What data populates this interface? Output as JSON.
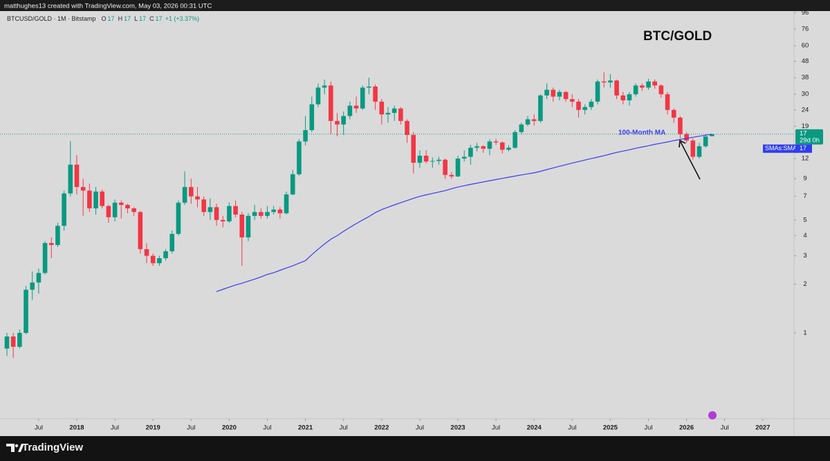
{
  "header": {
    "credit": "matthughes13 created with TradingView.com, May 03, 2026 00:31 UTC"
  },
  "footer": {
    "brand": "TradingView"
  },
  "chart_data": {
    "type": "candlestick",
    "title": "BTC/GOLD",
    "symbol": "BTCUSD/GOLD · 1M · Bitstamp",
    "ohlc_labels": [
      {
        "key": "O",
        "value": "17"
      },
      {
        "key": "H",
        "value": "17"
      },
      {
        "key": "L",
        "value": "17"
      },
      {
        "key": "C",
        "value": "17"
      }
    ],
    "change": "+1 (+3.37%)",
    "countdown": "29d 0h",
    "study_tag": "SMAs:SMA3",
    "up_color": "#089981",
    "down_color": "#f23645",
    "log_scale": true,
    "grid": false,
    "price_line": true,
    "ylim": [
      0.294,
      98.2
    ],
    "yticks": [
      1,
      2,
      3,
      4,
      5,
      7,
      9,
      12,
      19,
      24,
      30,
      38,
      48,
      60,
      76,
      96
    ],
    "xticks": [
      {
        "value": "2017-07",
        "label": "Jul"
      },
      {
        "value": "2018-01",
        "label": "2018"
      },
      {
        "value": "2018-07",
        "label": "Jul"
      },
      {
        "value": "2019-01",
        "label": "2019"
      },
      {
        "value": "2019-07",
        "label": "Jul"
      },
      {
        "value": "2020-01",
        "label": "2020"
      },
      {
        "value": "2020-07",
        "label": "Jul"
      },
      {
        "value": "2021-01",
        "label": "2021"
      },
      {
        "value": "2021-07",
        "label": "Jul"
      },
      {
        "value": "2022-01",
        "label": "2022"
      },
      {
        "value": "2022-07",
        "label": "Jul"
      },
      {
        "value": "2023-01",
        "label": "2023"
      },
      {
        "value": "2023-07",
        "label": "Jul"
      },
      {
        "value": "2024-01",
        "label": "2024"
      },
      {
        "value": "2024-07",
        "label": "Jul"
      },
      {
        "value": "2025-01",
        "label": "2025"
      },
      {
        "value": "2025-07",
        "label": "Jul"
      },
      {
        "value": "2026-01",
        "label": "2026"
      },
      {
        "value": "2026-07",
        "label": "Jul"
      },
      {
        "value": "2027-01",
        "label": "2027"
      }
    ],
    "x": [
      "2017-02",
      "2017-03",
      "2017-04",
      "2017-05",
      "2017-06",
      "2017-07",
      "2017-08",
      "2017-09",
      "2017-10",
      "2017-11",
      "2017-12",
      "2018-01",
      "2018-02",
      "2018-03",
      "2018-04",
      "2018-05",
      "2018-06",
      "2018-07",
      "2018-08",
      "2018-09",
      "2018-10",
      "2018-11",
      "2018-12",
      "2019-01",
      "2019-02",
      "2019-03",
      "2019-04",
      "2019-05",
      "2019-06",
      "2019-07",
      "2019-08",
      "2019-09",
      "2019-10",
      "2019-11",
      "2019-12",
      "2020-01",
      "2020-02",
      "2020-03",
      "2020-04",
      "2020-05",
      "2020-06",
      "2020-07",
      "2020-08",
      "2020-09",
      "2020-10",
      "2020-11",
      "2020-12",
      "2021-01",
      "2021-02",
      "2021-03",
      "2021-04",
      "2021-05",
      "2021-06",
      "2021-07",
      "2021-08",
      "2021-09",
      "2021-10",
      "2021-11",
      "2021-12",
      "2022-01",
      "2022-02",
      "2022-03",
      "2022-04",
      "2022-05",
      "2022-06",
      "2022-07",
      "2022-08",
      "2022-09",
      "2022-10",
      "2022-11",
      "2022-12",
      "2023-01",
      "2023-02",
      "2023-03",
      "2023-04",
      "2023-05",
      "2023-06",
      "2023-07",
      "2023-08",
      "2023-09",
      "2023-10",
      "2023-11",
      "2023-12",
      "2024-01",
      "2024-02",
      "2024-03",
      "2024-04",
      "2024-05",
      "2024-06",
      "2024-07",
      "2024-08",
      "2024-09",
      "2024-10",
      "2024-11",
      "2024-12",
      "2025-01",
      "2025-02",
      "2025-03",
      "2025-04",
      "2025-05",
      "2025-06",
      "2025-07",
      "2025-08",
      "2025-09",
      "2025-10",
      "2025-11",
      "2025-12",
      "2026-01",
      "2026-02",
      "2026-03",
      "2026-04",
      "2026-05"
    ],
    "open": [
      0.8,
      0.95,
      0.82,
      1.0,
      1.85,
      2.05,
      2.35,
      3.6,
      3.5,
      4.6,
      7.3,
      11.0,
      8.0,
      7.6,
      5.9,
      7.5,
      6.1,
      5.2,
      6.4,
      6.2,
      5.9,
      5.6,
      3.3,
      3.0,
      2.7,
      2.9,
      3.2,
      4.1,
      6.4,
      8.0,
      7.0,
      6.7,
      5.6,
      6.0,
      5.0,
      4.9,
      6.1,
      5.4,
      3.9,
      5.3,
      5.6,
      5.3,
      5.6,
      5.8,
      5.5,
      7.2,
      9.6,
      15.3,
      18.0,
      26.0,
      33.0,
      34.0,
      20.5,
      19.5,
      22.0,
      25.5,
      24.5,
      33.0,
      33.5,
      27.0,
      22.5,
      23.0,
      24.5,
      20.5,
      16.8,
      11.3,
      12.5,
      11.5,
      11.6,
      11.8,
      9.5,
      9.3,
      12.0,
      12.3,
      14.0,
      14.3,
      13.8,
      15.3,
      15.1,
      13.6,
      14.0,
      17.5,
      19.5,
      21.0,
      20.5,
      29.5,
      32.0,
      29.0,
      31.0,
      28.0,
      27.0,
      24.0,
      25.0,
      27.0,
      36.0,
      35.5,
      36.5,
      29.5,
      27.5,
      30.0,
      34.0,
      33.0,
      36.0,
      34.0,
      30.0,
      24.0,
      21.5,
      17.0,
      15.5,
      12.3,
      14.3,
      16.5
    ],
    "high": [
      1.0,
      1.0,
      1.05,
      1.95,
      2.4,
      2.5,
      3.7,
      3.9,
      4.8,
      7.6,
      15.4,
      12.6,
      9.0,
      8.4,
      8.0,
      7.7,
      6.2,
      6.7,
      6.6,
      6.3,
      6.0,
      5.7,
      3.6,
      3.1,
      3.0,
      3.3,
      4.3,
      6.6,
      10.0,
      9.0,
      8.0,
      7.0,
      6.8,
      6.3,
      5.3,
      6.4,
      6.6,
      5.6,
      5.5,
      6.2,
      5.9,
      6.1,
      6.1,
      6.0,
      7.5,
      10.2,
      15.8,
      22.0,
      29.0,
      35.0,
      37.0,
      36.0,
      23.0,
      23.5,
      27.0,
      29.0,
      34.0,
      38.0,
      34.5,
      28.0,
      25.0,
      25.5,
      25.0,
      21.0,
      17.5,
      13.5,
      13.5,
      12.2,
      12.3,
      12.0,
      9.9,
      12.5,
      13.5,
      14.6,
      15.0,
      14.5,
      15.8,
      15.9,
      15.3,
      14.5,
      18.0,
      20.0,
      22.0,
      22.5,
      30.0,
      35.0,
      33.0,
      32.0,
      31.5,
      30.0,
      28.0,
      26.0,
      28.0,
      37.0,
      41.0,
      40.0,
      37.0,
      31.0,
      31.0,
      35.0,
      35.0,
      37.5,
      37.0,
      34.5,
      31.0,
      24.5,
      22.0,
      17.5,
      16.0,
      15.0,
      17.0,
      17.1
    ],
    "low": [
      0.72,
      0.7,
      0.8,
      0.98,
      1.6,
      1.75,
      2.3,
      2.9,
      3.4,
      4.3,
      7.0,
      7.2,
      5.3,
      5.6,
      5.4,
      5.9,
      4.8,
      4.9,
      5.1,
      5.5,
      5.3,
      3.1,
      2.7,
      2.6,
      2.6,
      2.8,
      3.1,
      4.0,
      6.2,
      6.3,
      6.0,
      5.3,
      5.0,
      4.6,
      4.5,
      4.8,
      5.2,
      2.6,
      3.7,
      5.0,
      5.1,
      5.1,
      5.4,
      5.1,
      5.4,
      7.1,
      9.4,
      14.5,
      17.5,
      25.0,
      30.0,
      17.0,
      16.5,
      16.8,
      21.0,
      23.0,
      24.0,
      30.0,
      24.0,
      19.5,
      20.0,
      20.5,
      19.5,
      15.0,
      9.7,
      10.5,
      11.2,
      10.5,
      11.0,
      9.0,
      9.0,
      9.2,
      11.5,
      11.0,
      13.3,
      13.0,
      12.6,
      14.6,
      12.9,
      13.3,
      13.8,
      17.0,
      19.0,
      19.2,
      20.0,
      28.0,
      27.0,
      27.5,
      27.0,
      25.0,
      21.5,
      22.5,
      24.0,
      26.0,
      33.0,
      33.0,
      28.0,
      26.0,
      25.5,
      29.0,
      31.5,
      32.0,
      32.5,
      28.5,
      22.5,
      20.0,
      16.0,
      15.0,
      11.8,
      12.0,
      14.0,
      16.5
    ],
    "close": [
      0.95,
      0.82,
      1.0,
      1.85,
      2.05,
      2.35,
      3.6,
      3.5,
      4.6,
      7.3,
      11.0,
      8.0,
      7.6,
      5.9,
      7.5,
      6.1,
      5.2,
      6.4,
      6.2,
      5.9,
      5.6,
      3.3,
      3.0,
      2.7,
      2.9,
      3.2,
      4.1,
      6.4,
      8.0,
      7.0,
      6.7,
      5.6,
      6.0,
      5.0,
      4.9,
      6.1,
      5.4,
      3.9,
      5.3,
      5.6,
      5.3,
      5.6,
      5.8,
      5.5,
      7.2,
      9.6,
      15.3,
      18.0,
      26.0,
      33.0,
      34.0,
      20.5,
      19.5,
      22.0,
      25.5,
      24.5,
      33.0,
      33.5,
      27.0,
      22.5,
      23.0,
      24.5,
      20.5,
      16.8,
      11.3,
      12.5,
      11.5,
      11.6,
      11.8,
      9.5,
      9.3,
      12.0,
      12.3,
      14.0,
      14.3,
      13.8,
      15.3,
      15.1,
      13.6,
      14.0,
      17.5,
      19.5,
      21.0,
      20.5,
      29.5,
      32.0,
      29.0,
      31.0,
      28.0,
      27.0,
      24.0,
      25.0,
      27.0,
      36.0,
      35.5,
      36.5,
      29.5,
      27.5,
      30.0,
      34.0,
      33.0,
      36.0,
      34.0,
      30.0,
      24.0,
      21.5,
      17.0,
      15.5,
      12.3,
      14.3,
      16.45,
      17
    ],
    "series": [
      {
        "name": "100-Month MA",
        "color": "#3b3bef",
        "values": [
          null,
          null,
          null,
          null,
          null,
          null,
          null,
          null,
          null,
          null,
          null,
          null,
          null,
          null,
          null,
          null,
          null,
          null,
          null,
          null,
          null,
          null,
          null,
          null,
          null,
          null,
          null,
          null,
          null,
          null,
          null,
          null,
          null,
          1.8,
          1.86,
          1.92,
          1.98,
          2.03,
          2.09,
          2.15,
          2.22,
          2.3,
          2.36,
          2.44,
          2.52,
          2.6,
          2.7,
          2.8,
          3.05,
          3.3,
          3.55,
          3.8,
          4.0,
          4.25,
          4.5,
          4.75,
          5.0,
          5.25,
          5.55,
          5.8,
          6.0,
          6.2,
          6.4,
          6.6,
          6.8,
          7.0,
          7.15,
          7.3,
          7.45,
          7.6,
          7.8,
          8.0,
          8.15,
          8.3,
          8.45,
          8.6,
          8.75,
          8.9,
          9.05,
          9.2,
          9.35,
          9.5,
          9.65,
          9.8,
          10.0,
          10.25,
          10.5,
          10.75,
          11.0,
          11.25,
          11.5,
          11.75,
          12.0,
          12.25,
          12.5,
          12.8,
          13.1,
          13.35,
          13.6,
          13.9,
          14.15,
          14.4,
          14.7,
          14.95,
          15.2,
          15.5,
          15.75,
          16.0,
          16.25,
          16.5,
          16.75,
          17
        ]
      }
    ]
  }
}
